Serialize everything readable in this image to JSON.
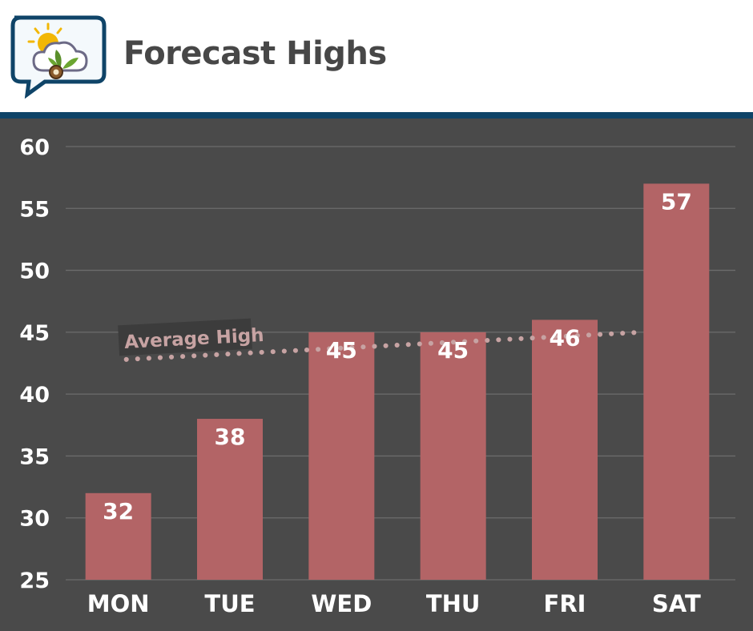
{
  "header": {
    "title": "Forecast Highs",
    "logo_icon": "weather-sun-cloud-leaf-icon"
  },
  "colors": {
    "header_bg": "#ffffff",
    "accent_rule": "#0f4468",
    "plot_bg": "#4a4a4a",
    "bar": "#b36466",
    "average_line": "#c7a3a3",
    "text": "#ffffff",
    "title_text": "#474747"
  },
  "chart_data": {
    "type": "bar",
    "title": "Forecast Highs",
    "categories": [
      "MON",
      "TUE",
      "WED",
      "THU",
      "FRI",
      "SAT"
    ],
    "values": [
      32,
      38,
      45,
      45,
      46,
      57
    ],
    "data_labels": [
      "32",
      "38",
      "45",
      "45",
      "46",
      "57"
    ],
    "ylim": [
      25,
      60
    ],
    "yticks": [
      25,
      30,
      35,
      40,
      45,
      50,
      55,
      60
    ],
    "grid": true,
    "average": {
      "label": "Average High",
      "start": 42.8,
      "end": 45.0
    }
  }
}
